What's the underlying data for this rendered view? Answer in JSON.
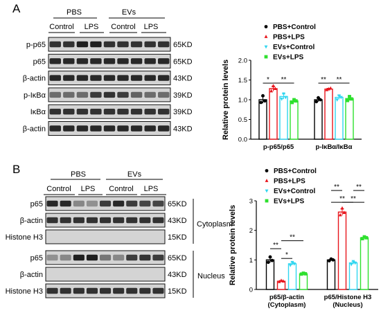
{
  "colors": {
    "pbs_control": "#000000",
    "pbs_lps": "#e8141b",
    "evs_control": "#2fd6f0",
    "evs_lps": "#2ee02e",
    "blot_background": "#d4d4d4",
    "band_dark": "#151515"
  },
  "panel_a": {
    "label": "A",
    "group_pbs": "PBS",
    "group_evs": "EVs",
    "lane_labels": [
      "Control",
      "LPS",
      "Control",
      "LPS"
    ],
    "blots": [
      {
        "protein": "p-p65",
        "size": "65KD",
        "intensity": [
          0.85,
          0.85,
          0.95,
          0.95,
          0.85,
          0.85,
          0.85,
          0.85,
          0.85
        ]
      },
      {
        "protein": "p65",
        "size": "65KD",
        "intensity": [
          0.9,
          0.9,
          0.9,
          0.9,
          0.9,
          0.9,
          0.9,
          0.9,
          0.9
        ]
      },
      {
        "protein": "β-actin",
        "size": "43KD",
        "intensity": [
          0.9,
          0.9,
          0.9,
          0.9,
          0.9,
          0.9,
          0.9,
          0.9,
          0.9
        ]
      },
      {
        "protein": "p-IκBα",
        "size": "39KD",
        "intensity": [
          0.55,
          0.55,
          0.55,
          0.8,
          0.85,
          0.8,
          0.6,
          0.55,
          0.55
        ]
      },
      {
        "protein": "IκBα",
        "size": "39KD",
        "intensity": [
          0.85,
          0.85,
          0.85,
          0.85,
          0.85,
          0.85,
          0.85,
          0.85,
          0.85
        ]
      },
      {
        "protein": "β-actin",
        "size": "43KD",
        "intensity": [
          0.9,
          0.9,
          0.9,
          0.9,
          0.9,
          0.9,
          0.9,
          0.9,
          0.9
        ]
      }
    ]
  },
  "panel_b": {
    "label": "B",
    "group_pbs": "PBS",
    "group_evs": "EVs",
    "lane_labels": [
      "Control",
      "LPS",
      "Control",
      "LPS"
    ],
    "cytoplasm_label": "Cytoplasm",
    "nucleus_label": "Nucleus",
    "cytoplasm_blots": [
      {
        "protein": "p65",
        "size": "65KD",
        "intensity": [
          0.9,
          0.9,
          0.4,
          0.35,
          0.8,
          0.9,
          0.8,
          0.75,
          0.75
        ]
      },
      {
        "protein": "β-actin",
        "size": "43KD",
        "intensity": [
          0.85,
          0.85,
          0.85,
          0.85,
          0.85,
          0.85,
          0.85,
          0.85,
          0.85
        ]
      },
      {
        "protein": "Histone H3",
        "size": "15KD",
        "intensity": [
          0,
          0,
          0,
          0,
          0,
          0,
          0,
          0,
          0
        ]
      }
    ],
    "nucleus_blots": [
      {
        "protein": "p65",
        "size": "65KD",
        "intensity": [
          0.35,
          0.4,
          0.95,
          0.95,
          0.5,
          0.4,
          0.8,
          0.85,
          0.8
        ]
      },
      {
        "protein": "β-actin",
        "size": "43KD",
        "intensity": [
          0,
          0,
          0,
          0,
          0,
          0,
          0,
          0,
          0
        ]
      },
      {
        "protein": "Histone H3",
        "size": "15KD",
        "intensity": [
          0.85,
          0.85,
          0.85,
          0.85,
          0.85,
          0.85,
          0.85,
          0.85,
          0.85
        ]
      }
    ]
  },
  "chart_data": [
    {
      "type": "bar",
      "ylabel": "Relative protein levels",
      "ylim": [
        0,
        2.0
      ],
      "yticks": [
        0.0,
        0.5,
        1.0,
        1.5,
        2.0
      ],
      "yticks_labels": [
        "0.0",
        "0.5",
        "1.0",
        "1.5",
        "2.0"
      ],
      "categories": [
        "p-p65/p65",
        "p-IκBα/IκBα"
      ],
      "legend": [
        "PBS+Control",
        "PBS+LPS",
        "EVs+Control",
        "EVs+LPS"
      ],
      "series": [
        {
          "name": "PBS+Control",
          "values": [
            1.0,
            1.0
          ],
          "points": [
            [
              0.93,
              1.1,
              0.97
            ],
            [
              0.95,
              1.05,
              1.0
            ]
          ]
        },
        {
          "name": "PBS+LPS",
          "values": [
            1.28,
            1.27
          ],
          "points": [
            [
              1.22,
              1.35,
              1.28
            ],
            [
              1.25,
              1.27,
              1.29
            ]
          ]
        },
        {
          "name": "EVs+Control",
          "values": [
            1.08,
            1.06
          ],
          "points": [
            [
              1.02,
              1.15,
              1.06
            ],
            [
              1.0,
              1.1,
              1.06
            ]
          ]
        },
        {
          "name": "EVs+LPS",
          "values": [
            0.97,
            1.03
          ],
          "points": [
            [
              0.93,
              1.0,
              0.97
            ],
            [
              0.98,
              1.08,
              1.02
            ]
          ]
        }
      ],
      "significance": [
        {
          "category": 0,
          "from": 0,
          "to": 1,
          "label": "*",
          "level": 1.42
        },
        {
          "category": 0,
          "from": 1,
          "to": 3,
          "label": "**",
          "level": 1.42
        },
        {
          "category": 1,
          "from": 0,
          "to": 1,
          "label": "**",
          "level": 1.42
        },
        {
          "category": 1,
          "from": 1,
          "to": 3,
          "label": "**",
          "level": 1.42
        }
      ]
    },
    {
      "type": "bar",
      "ylabel": "Relative protein levels",
      "ylim": [
        0,
        3
      ],
      "yticks": [
        0,
        1,
        2,
        3
      ],
      "yticks_labels": [
        "0",
        "1",
        "2",
        "3"
      ],
      "categories": [
        "p65/β-actin\n(Cytoplasm)",
        "p65/Histone H3\n(Nucleus)"
      ],
      "legend": [
        "PBS+Control",
        "PBS+LPS",
        "EVs+Control",
        "EVs+LPS"
      ],
      "series": [
        {
          "name": "PBS+Control",
          "values": [
            1.0,
            1.0
          ],
          "points": [
            [
              0.92,
              1.1,
              0.98
            ],
            [
              0.97,
              1.03,
              1.0
            ]
          ]
        },
        {
          "name": "PBS+LPS",
          "values": [
            0.28,
            2.62
          ],
          "points": [
            [
              0.26,
              0.3,
              0.28
            ],
            [
              2.52,
              2.75,
              2.6
            ]
          ]
        },
        {
          "name": "EVs+Control",
          "values": [
            0.87,
            0.9
          ],
          "points": [
            [
              0.82,
              0.92,
              0.87
            ],
            [
              0.85,
              0.95,
              0.9
            ]
          ]
        },
        {
          "name": "EVs+LPS",
          "values": [
            0.53,
            1.75
          ],
          "points": [
            [
              0.52,
              0.55,
              0.53
            ],
            [
              1.72,
              1.78,
              1.75
            ]
          ]
        }
      ],
      "significance": [
        {
          "category": 0,
          "from": 0,
          "to": 1,
          "label": "**",
          "level": 1.38
        },
        {
          "category": 0,
          "from": 1,
          "to": 3,
          "label": "**",
          "level": 1.65
        },
        {
          "category": 0,
          "from": 1,
          "to": 2,
          "label": "*",
          "level": 1.05
        },
        {
          "category": 1,
          "from": 0,
          "to": 1,
          "label": "**",
          "level": 3.35
        },
        {
          "category": 1,
          "from": 2,
          "to": 3,
          "label": "**",
          "level": 3.35
        },
        {
          "category": 1,
          "from": 0,
          "to": 2,
          "label": "**",
          "level": 2.95
        },
        {
          "category": 1,
          "from": 1,
          "to": 3,
          "label": "**",
          "level": 2.95
        }
      ]
    }
  ]
}
